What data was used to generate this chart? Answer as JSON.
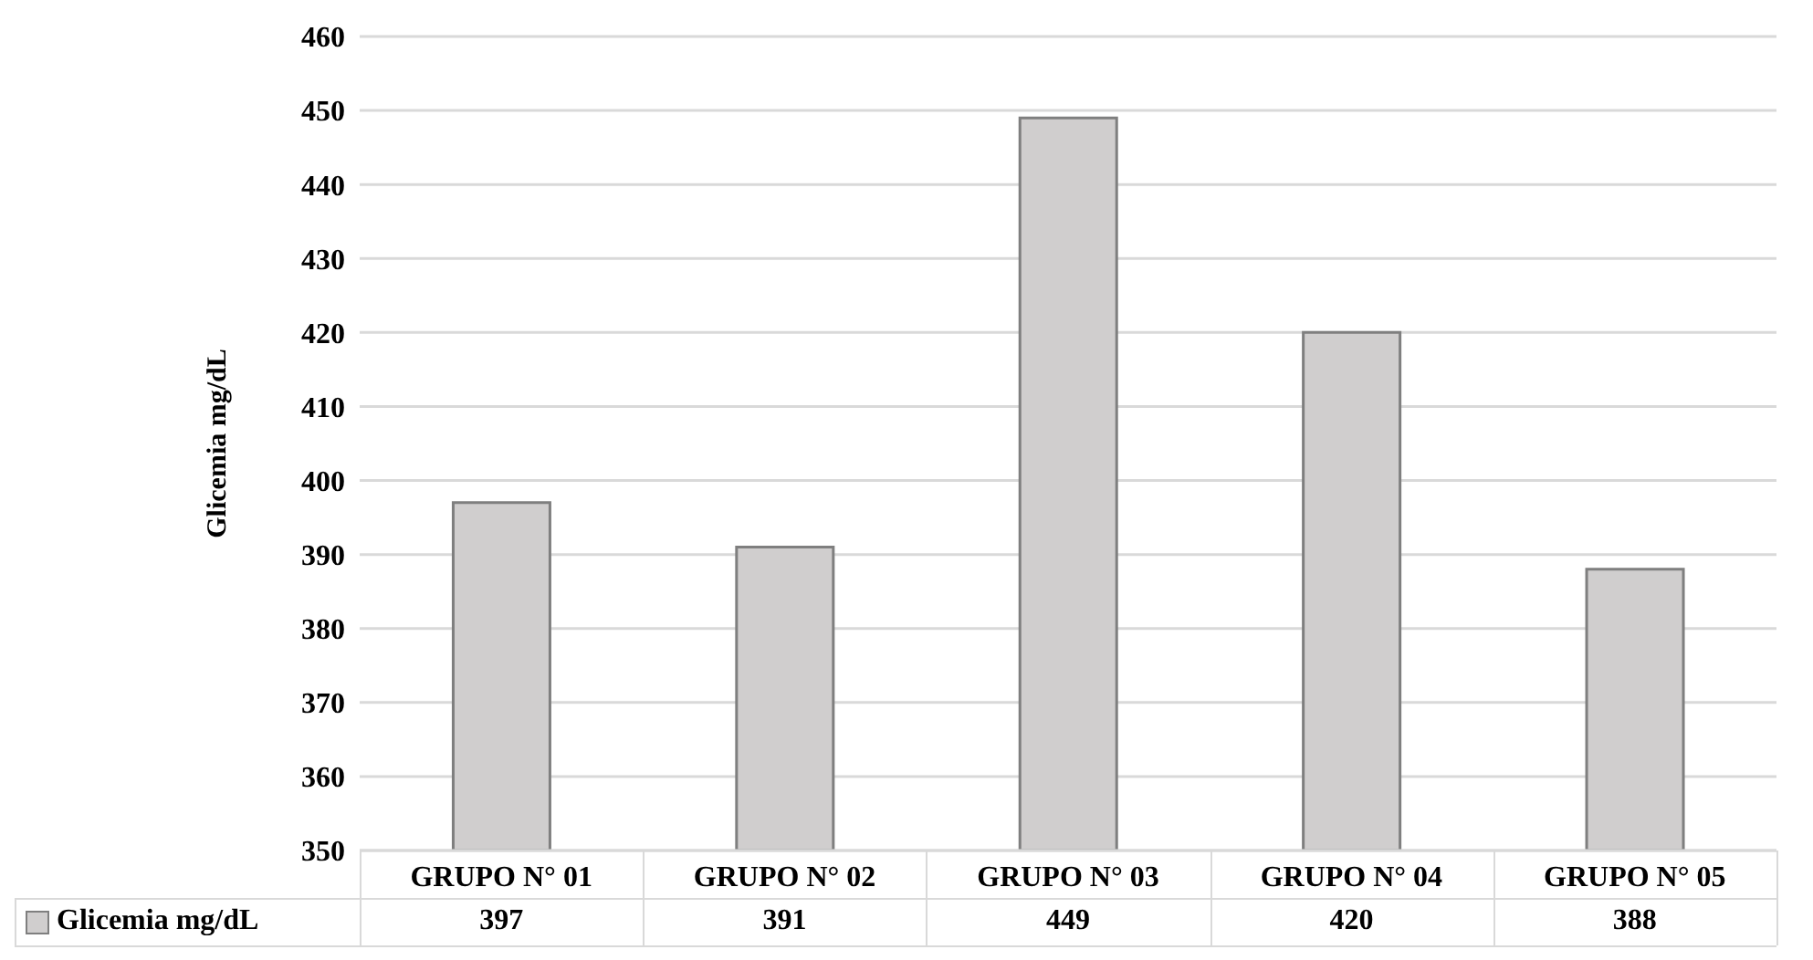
{
  "chart_data": {
    "type": "bar",
    "ylabel": "Glicemia mg/dL",
    "categories": [
      "GRUPO N° 01",
      "GRUPO N° 02",
      "GRUPO N° 03",
      "GRUPO N° 04",
      "GRUPO N° 05"
    ],
    "series": [
      {
        "name": "Glicemia mg/dL",
        "color": "#d0cece",
        "values": [
          397,
          391,
          449,
          420,
          388
        ]
      }
    ],
    "ylim": [
      350,
      460
    ],
    "yticks": [
      350,
      360,
      370,
      380,
      390,
      400,
      410,
      420,
      430,
      440,
      450,
      460
    ],
    "grid": "y",
    "legend": "bottom left",
    "data_labels": true
  }
}
